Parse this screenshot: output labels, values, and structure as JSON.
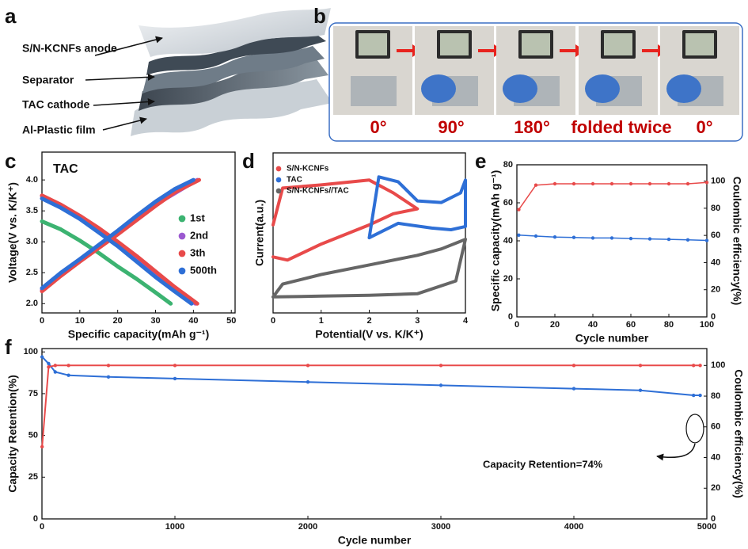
{
  "panel_a": {
    "label": "a",
    "layers": [
      "S/N-KCNFs anode",
      "Separator",
      "TAC cathode",
      "Al-Plastic film"
    ]
  },
  "panel_b": {
    "label": "b",
    "angles": [
      "0°",
      "90°",
      "180°",
      "folded twice",
      "0°"
    ]
  },
  "chart_data": [
    {
      "type": "line",
      "panel": "c",
      "title": "TAC",
      "xlabel": "Specific capacity(mAh g⁻¹)",
      "ylabel": "Voltage(V vs. K/K⁺)",
      "xlim": [
        0,
        51
      ],
      "xticks": [
        0,
        10,
        20,
        30,
        40,
        50
      ],
      "ylim": [
        1.85,
        4.45
      ],
      "yticks": [
        {
          "value": 2.0,
          "label": "2.0"
        },
        2.5,
        {
          "value": 3.0,
          "label": "3.0"
        },
        3.5,
        {
          "value": 4.0,
          "label": "4.0"
        }
      ],
      "legend": "right",
      "series": [
        {
          "name": "1st",
          "color": "#3cb371",
          "x": [
            0,
            5,
            10,
            15,
            20,
            25,
            30,
            34
          ],
          "values": [
            3.33,
            3.2,
            3.02,
            2.82,
            2.6,
            2.4,
            2.18,
            2.0
          ]
        },
        {
          "name": "2nd",
          "color": "#9b59d0",
          "x": [
            0,
            10,
            20,
            30,
            41,
            null,
            0,
            10,
            20,
            30,
            40.5
          ],
          "values": [
            2.22,
            2.7,
            3.14,
            3.6,
            4.0,
            null,
            3.74,
            3.4,
            2.98,
            2.5,
            2.0
          ]
        },
        {
          "name": "3th",
          "color": "#e84a4a",
          "x": [
            0,
            5,
            10,
            15,
            20,
            25,
            30,
            35,
            41.5,
            null,
            0,
            5,
            10,
            15,
            20,
            25,
            30,
            35,
            41
          ],
          "values": [
            2.2,
            2.45,
            2.68,
            2.9,
            3.12,
            3.35,
            3.58,
            3.8,
            4.0,
            null,
            3.75,
            3.6,
            3.42,
            3.22,
            3.0,
            2.77,
            2.52,
            2.27,
            2.0
          ]
        },
        {
          "name": "500th",
          "color": "#2e6fd6",
          "x": [
            0,
            5,
            10,
            15,
            20,
            25,
            30,
            35,
            40,
            null,
            0,
            5,
            10,
            15,
            20,
            25,
            30,
            35,
            39.5
          ],
          "values": [
            2.25,
            2.5,
            2.72,
            2.95,
            3.18,
            3.42,
            3.65,
            3.85,
            4.0,
            null,
            3.7,
            3.55,
            3.37,
            3.15,
            2.93,
            2.68,
            2.43,
            2.2,
            2.0
          ]
        }
      ]
    },
    {
      "type": "line",
      "panel": "d",
      "xlabel": "Potential(V vs. K/K⁺)",
      "ylabel": "Current(a.u.)",
      "xlim": [
        0,
        4
      ],
      "xticks": [
        0,
        1,
        2,
        3,
        4
      ],
      "ylim": [
        0,
        10
      ],
      "legend": "upper left",
      "series": [
        {
          "name": "S/N-KCNFs",
          "color": "#e84a4a",
          "x": [
            0,
            0.2,
            1,
            2,
            2.5,
            3,
            2.5,
            2,
            1,
            0.3,
            0
          ],
          "values": [
            5.5,
            7.8,
            8.0,
            8.3,
            7.5,
            6.5,
            6.2,
            5.5,
            4.3,
            3.3,
            3.5
          ]
        },
        {
          "name": "TAC",
          "color": "#2e6fd6",
          "x": [
            2,
            2.2,
            2.6,
            3,
            3.5,
            3.9,
            4,
            4,
            3.7,
            3.3,
            2.6,
            2
          ],
          "values": [
            4.7,
            8.5,
            8.2,
            7.0,
            6.9,
            7.5,
            8.3,
            5.4,
            5.2,
            5.3,
            5.6,
            4.7
          ]
        },
        {
          "name": "S/N-KCNFs//TAC",
          "color": "#666666",
          "x": [
            0,
            1,
            2,
            3,
            3.8,
            4,
            3.5,
            3,
            2,
            1,
            0.2,
            0
          ],
          "values": [
            1.0,
            1.05,
            1.1,
            1.2,
            2.0,
            4.6,
            4.0,
            3.6,
            3.0,
            2.4,
            1.8,
            1.0
          ]
        }
      ]
    },
    {
      "type": "line",
      "panel": "e",
      "xlabel": "Cycle number",
      "ylabel": "Specific capacity(mAh g⁻¹)",
      "y2label": "Coulombic efficiency(%)",
      "xlim": [
        0,
        100
      ],
      "xticks": [
        0,
        20,
        40,
        60,
        80,
        100
      ],
      "ylim": [
        0,
        80
      ],
      "yticks": [
        0,
        20,
        40,
        60,
        80
      ],
      "y2lim": [
        0,
        112
      ],
      "y2ticks": [
        0,
        20,
        40,
        60,
        80,
        100
      ],
      "x": [
        1,
        10,
        20,
        30,
        40,
        50,
        60,
        70,
        80,
        90,
        100
      ],
      "series": [
        {
          "name": "Specific capacity",
          "color": "#2e6fd6",
          "values": [
            43,
            42.5,
            42,
            41.8,
            41.5,
            41.5,
            41.2,
            41,
            40.8,
            40.5,
            40.2
          ]
        },
        {
          "name": "Coulombic efficiency",
          "color": "#e84a4a",
          "axis": "y2",
          "values": [
            79,
            97,
            98,
            98,
            98,
            98,
            98,
            98,
            98,
            98,
            99
          ]
        }
      ]
    },
    {
      "type": "line",
      "panel": "f",
      "xlabel": "Cycle number",
      "ylabel": "Capacity Retention(%)",
      "y2label": "Coulombic efficiency(%)",
      "annotation": "Capacity Retention=74%",
      "xlim": [
        0,
        5000
      ],
      "xticks": [
        0,
        1000,
        2000,
        3000,
        4000,
        5000
      ],
      "ylim": [
        0,
        102
      ],
      "yticks": [
        0,
        25,
        50,
        75,
        100
      ],
      "y2lim": [
        0,
        111
      ],
      "y2ticks": [
        0,
        20,
        40,
        60,
        80,
        100
      ],
      "x": [
        1,
        50,
        100,
        200,
        500,
        1000,
        2000,
        3000,
        4000,
        4500,
        4900,
        4950
      ],
      "series": [
        {
          "name": "Capacity Retention",
          "color": "#2e6fd6",
          "values": [
            97,
            93,
            88,
            86,
            85,
            84,
            82,
            80,
            78,
            77,
            74,
            74
          ]
        },
        {
          "name": "Coulombic efficiency",
          "color": "#e84a4a",
          "axis": "y2",
          "values": [
            47,
            99,
            100,
            100,
            100,
            100,
            100,
            100,
            100,
            100,
            100,
            100
          ]
        }
      ]
    }
  ]
}
